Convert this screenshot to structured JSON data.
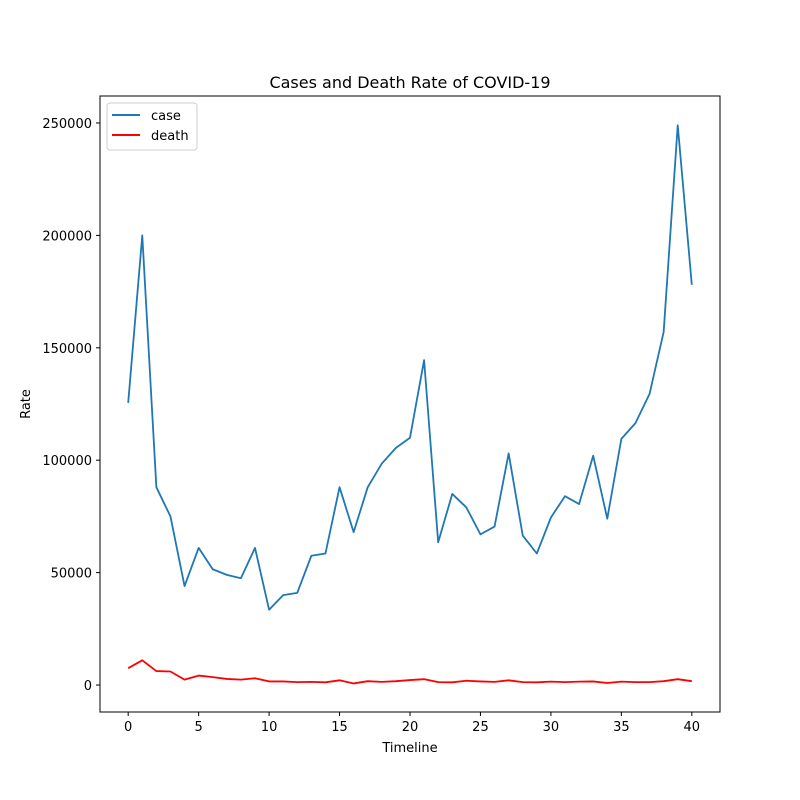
{
  "chart_data": {
    "type": "line",
    "title": "Cases and Death Rate of COVID-19",
    "xlabel": "Timeline",
    "ylabel": "Rate",
    "xlim": [
      -2,
      42
    ],
    "ylim": [
      -12000,
      262000
    ],
    "xticks": [
      0,
      5,
      10,
      15,
      20,
      25,
      30,
      35,
      40
    ],
    "yticks": [
      0,
      50000,
      100000,
      150000,
      200000,
      250000
    ],
    "grid": false,
    "legend_position": "top-left",
    "x": [
      0,
      1,
      2,
      3,
      4,
      5,
      6,
      7,
      8,
      9,
      10,
      11,
      12,
      13,
      14,
      15,
      16,
      17,
      18,
      19,
      20,
      21,
      22,
      23,
      24,
      25,
      26,
      27,
      28,
      29,
      30,
      31,
      32,
      33,
      34,
      35,
      36,
      37,
      38,
      39,
      40
    ],
    "series": [
      {
        "name": "case",
        "color": "#1f77b4",
        "values": [
          125500,
          200000,
          88000,
          75000,
          44000,
          61000,
          51500,
          49000,
          47500,
          61000,
          33500,
          40000,
          41000,
          57500,
          58500,
          88000,
          68000,
          88000,
          98500,
          105500,
          110000,
          144500,
          63500,
          85000,
          79000,
          67000,
          70500,
          103000,
          66500,
          58500,
          74500,
          84000,
          80500,
          102000,
          74000,
          109500,
          116500,
          129500,
          157000,
          249000,
          178000
        ]
      },
      {
        "name": "death",
        "color": "#ff0000",
        "values": [
          7500,
          11000,
          6200,
          6000,
          2400,
          4200,
          3500,
          2700,
          2400,
          3000,
          1600,
          1600,
          1300,
          1400,
          1200,
          2100,
          700,
          1700,
          1400,
          1700,
          2200,
          2600,
          1300,
          1200,
          1900,
          1600,
          1400,
          2100,
          1300,
          1200,
          1500,
          1300,
          1500,
          1600,
          900,
          1500,
          1300,
          1300,
          1700,
          2600,
          1700
        ]
      }
    ]
  }
}
